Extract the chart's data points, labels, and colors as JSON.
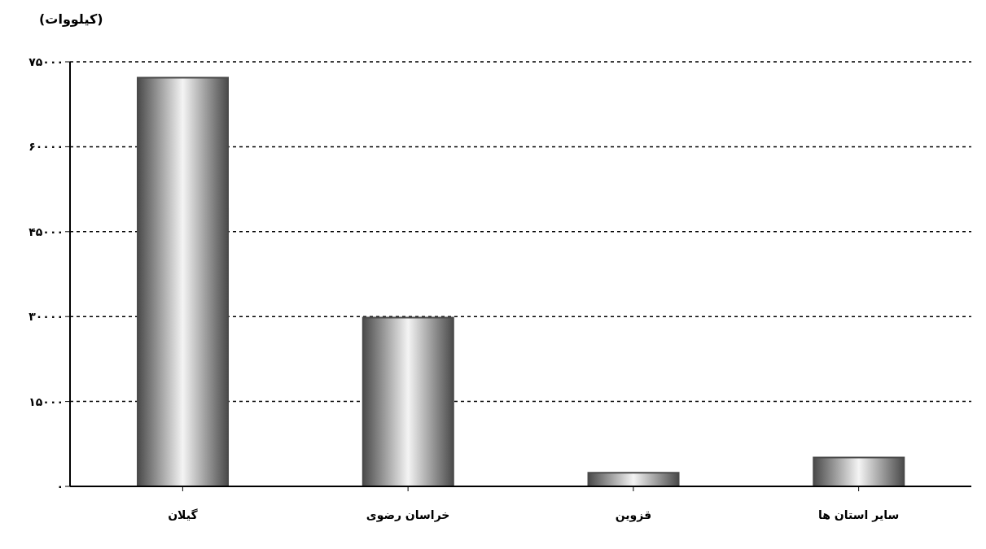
{
  "chart_data": {
    "type": "bar",
    "ylabel": "(کیلووات)",
    "categories": [
      "گیلان",
      "خراسان رضوی",
      "قزوین",
      "سایر استان ها"
    ],
    "values": [
      72200,
      29800,
      2400,
      5100
    ],
    "color": "#4a4a4a",
    "ylim": [
      0,
      75000
    ],
    "yticks": [
      {
        "value": 0,
        "label": "۰"
      },
      {
        "value": 15000,
        "label": "۱۵۰۰۰"
      },
      {
        "value": 30000,
        "label": "۳۰۰۰۰"
      },
      {
        "value": 45000,
        "label": "۴۵۰۰۰"
      },
      {
        "value": 60000,
        "label": "۶۰۰۰۰"
      },
      {
        "value": 75000,
        "label": "۷۵۰۰۰"
      }
    ],
    "grid": "y"
  }
}
